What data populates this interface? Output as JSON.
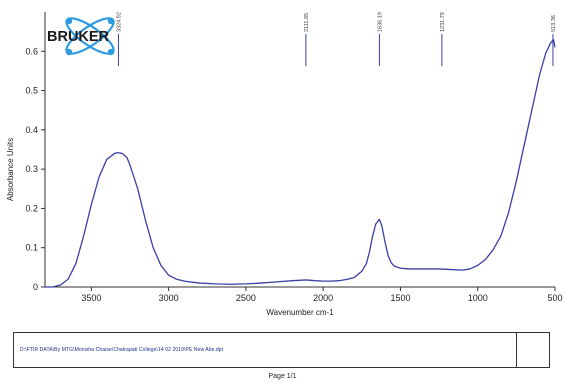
{
  "logo": {
    "text": "BRUKER"
  },
  "chart_data": {
    "type": "line",
    "title": "",
    "xlabel": "Wavenumber cm-1",
    "ylabel": "Absorbance Units",
    "x_reversed": true,
    "xlim": [
      3800,
      500
    ],
    "ylim": [
      0,
      0.7
    ],
    "xticks": [
      3500,
      3000,
      2500,
      2000,
      1500,
      1000,
      500
    ],
    "yticks": [
      0,
      0.1,
      0.2,
      0.3,
      0.4,
      0.5,
      0.6
    ],
    "ytick_labels": [
      "0",
      "0.1",
      "0.2",
      "0.3",
      "0.4",
      "0.5",
      "0.6"
    ],
    "grid": false,
    "series": [
      {
        "color": "#3b3fa6",
        "x": [
          3800,
          3750,
          3700,
          3650,
          3600,
          3550,
          3500,
          3450,
          3400,
          3350,
          3330,
          3300,
          3270,
          3250,
          3200,
          3150,
          3100,
          3050,
          3000,
          2950,
          2900,
          2800,
          2700,
          2600,
          2500,
          2400,
          2300,
          2200,
          2111,
          2050,
          2000,
          1950,
          1900,
          1850,
          1800,
          1750,
          1720,
          1700,
          1680,
          1660,
          1636,
          1620,
          1600,
          1580,
          1560,
          1540,
          1500,
          1450,
          1400,
          1350,
          1300,
          1250,
          1200,
          1150,
          1100,
          1050,
          1000,
          950,
          900,
          850,
          800,
          750,
          700,
          650,
          600,
          560,
          530,
          510,
          500
        ],
        "y": [
          0.0,
          0.0,
          0.005,
          0.02,
          0.06,
          0.13,
          0.21,
          0.28,
          0.325,
          0.34,
          0.342,
          0.34,
          0.33,
          0.31,
          0.25,
          0.17,
          0.1,
          0.055,
          0.03,
          0.02,
          0.015,
          0.01,
          0.008,
          0.007,
          0.008,
          0.01,
          0.013,
          0.016,
          0.018,
          0.016,
          0.015,
          0.015,
          0.016,
          0.019,
          0.024,
          0.04,
          0.06,
          0.09,
          0.13,
          0.16,
          0.172,
          0.155,
          0.115,
          0.08,
          0.062,
          0.053,
          0.048,
          0.046,
          0.046,
          0.046,
          0.046,
          0.046,
          0.045,
          0.044,
          0.043,
          0.046,
          0.055,
          0.07,
          0.095,
          0.13,
          0.19,
          0.27,
          0.36,
          0.45,
          0.54,
          0.595,
          0.62,
          0.63,
          0.61
        ]
      }
    ],
    "peaks": [
      {
        "x": 3324.9,
        "label": "3324.92"
      },
      {
        "x": 2111.85,
        "label": "2111.85"
      },
      {
        "x": 1636.19,
        "label": "1636.19"
      },
      {
        "x": 1231.79,
        "label": "1231.79"
      },
      {
        "x": 513.36,
        "label": "513.36"
      }
    ]
  },
  "file_box": {
    "path": "D:\\FTIR DATA\\By MTG\\Monisha Chaise\\Chatrapati College\\14 02 2019\\PE New Abs.dpt"
  },
  "footer": {
    "page": "Page 1/1"
  }
}
